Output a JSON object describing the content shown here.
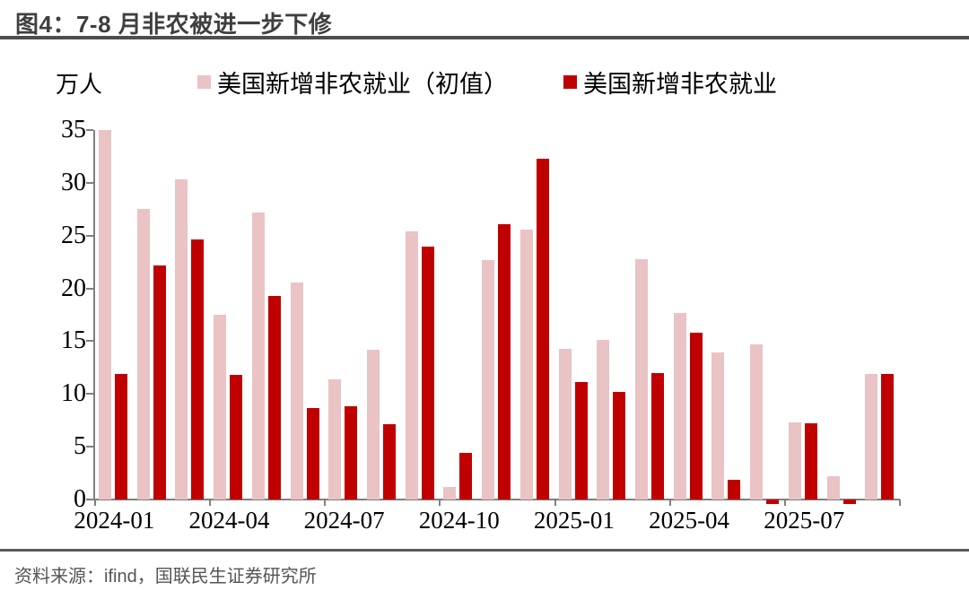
{
  "figure": {
    "title": "图4：7-8 月非农被进一步下修",
    "source": "资料来源：ifind，国联民生证券研究所"
  },
  "chart_data": {
    "type": "bar",
    "title": "图4：7-8 月非农被进一步下修",
    "unit_label": "万人",
    "ylabel": "万人",
    "xlabel": "",
    "ylim": [
      0,
      35
    ],
    "yticks": [
      0,
      5,
      10,
      15,
      20,
      25,
      30,
      35
    ],
    "grid": false,
    "legend_position": "top",
    "categories": [
      "2024-01",
      "2024-02",
      "2024-03",
      "2024-04",
      "2024-05",
      "2024-06",
      "2024-07",
      "2024-08",
      "2024-09",
      "2024-10",
      "2024-11",
      "2024-12",
      "2025-01",
      "2025-02",
      "2025-03",
      "2025-04",
      "2025-05",
      "2025-06",
      "2025-07",
      "2025-08",
      "2025-09"
    ],
    "xtick_labels": [
      "2024-01",
      "2024-04",
      "2024-07",
      "2024-10",
      "2025-01",
      "2025-04",
      "2025-07"
    ],
    "xtick_every": 3,
    "series": [
      {
        "name": "美国新增非农就业（初值）",
        "color": "#EAC3C5",
        "values": [
          35.0,
          27.5,
          30.3,
          17.5,
          27.2,
          20.6,
          11.4,
          14.2,
          25.4,
          1.2,
          22.7,
          25.6,
          14.3,
          15.1,
          22.8,
          17.7,
          13.9,
          14.7,
          7.3,
          2.2,
          11.9
        ]
      },
      {
        "name": "美国新增非农就业",
        "color": "#C00000",
        "values": [
          11.9,
          22.2,
          24.6,
          11.8,
          19.3,
          8.7,
          8.8,
          7.1,
          24.0,
          4.4,
          26.1,
          32.3,
          11.1,
          10.2,
          12.0,
          15.8,
          1.9,
          -0.4,
          7.2,
          -0.4,
          11.9
        ]
      }
    ],
    "colors": {
      "initial": "#EAC3C5",
      "revised": "#C00000",
      "axis": "#7f7f7f"
    }
  }
}
